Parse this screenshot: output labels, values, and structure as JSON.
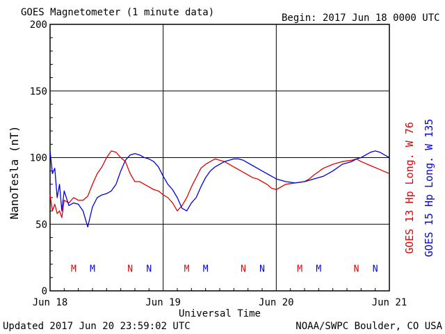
{
  "title": "GOES Magnetometer (1 minute data)",
  "begin_label": "Begin:  2017 Jun 18 0000 UTC",
  "updated_label": "Updated 2017 Jun 20 23:59:02 UTC",
  "credit_label": "NOAA/SWPC Boulder, CO USA",
  "colors": {
    "goes13": "#e00000",
    "goes15": "#0000e0",
    "axes": "#000000"
  },
  "chart_data": {
    "type": "line",
    "title": "GOES Magnetometer (1 minute data)",
    "xlabel": "Universal Time",
    "ylabel": "NanoTesla (nT)",
    "ylim": [
      0,
      200
    ],
    "yticks": [
      0,
      50,
      100,
      150,
      200
    ],
    "xlim_hours": [
      0,
      72
    ],
    "xtick_labels": [
      "Jun 18",
      "Jun 19",
      "Jun 20",
      "Jun 21"
    ],
    "grid": true,
    "legend_placement": "right-vertical",
    "series": [
      {
        "name": "GOES 13 Hp  Long. W 76",
        "color": "#e00000",
        "hours": [
          0,
          0.5,
          1,
          1.5,
          2,
          2.5,
          3,
          4,
          5,
          6,
          7,
          8,
          9,
          10,
          11,
          12,
          13,
          14,
          15,
          16,
          17,
          18,
          19,
          20,
          21,
          22,
          23,
          24,
          25,
          26,
          27,
          28,
          29,
          30,
          31,
          32,
          33,
          34,
          35,
          36,
          37,
          38,
          39,
          40,
          41,
          42,
          43,
          44,
          45,
          46,
          47,
          48,
          50,
          52,
          54,
          55,
          56,
          58,
          60,
          62,
          64,
          65,
          66,
          68,
          70,
          72
        ],
        "values": [
          72,
          60,
          65,
          58,
          60,
          55,
          68,
          66,
          70,
          68,
          68,
          71,
          80,
          88,
          93,
          100,
          105,
          104,
          100,
          97,
          88,
          82,
          82,
          80,
          78,
          76,
          75,
          72,
          70,
          66,
          60,
          64,
          70,
          78,
          85,
          92,
          95,
          97,
          99,
          98,
          97,
          95,
          93,
          91,
          89,
          87,
          85,
          84,
          82,
          80,
          77,
          76,
          80,
          81,
          82,
          84,
          87,
          92,
          95,
          97,
          98,
          99,
          97,
          94,
          91,
          88
        ]
      },
      {
        "name": "GOES 15 Hp  Long. W 135",
        "color": "#0000e0",
        "hours": [
          0,
          0.5,
          1,
          1.5,
          2,
          2.5,
          3,
          4,
          5,
          6,
          7,
          8,
          9,
          10,
          11,
          12,
          13,
          14,
          15,
          16,
          17,
          18,
          19,
          20,
          21,
          22,
          23,
          24,
          25,
          26,
          27,
          28,
          29,
          30,
          31,
          32,
          33,
          34,
          35,
          36,
          37,
          38,
          39,
          40,
          41,
          42,
          43,
          44,
          45,
          46,
          47,
          48,
          50,
          52,
          54,
          55,
          56,
          58,
          60,
          62,
          64,
          65,
          66,
          68,
          69,
          70,
          71,
          72
        ],
        "values": [
          105,
          88,
          92,
          70,
          80,
          60,
          75,
          64,
          66,
          65,
          60,
          48,
          63,
          70,
          72,
          73,
          75,
          80,
          90,
          98,
          102,
          103,
          102,
          100,
          99,
          97,
          93,
          86,
          80,
          76,
          70,
          62,
          60,
          66,
          70,
          78,
          85,
          90,
          93,
          95,
          97,
          98,
          99,
          99,
          98,
          96,
          94,
          92,
          90,
          88,
          86,
          84,
          82,
          81,
          82,
          83,
          84,
          86,
          90,
          95,
          97,
          99,
          100,
          104,
          105,
          104,
          102,
          100
        ]
      }
    ],
    "annotations": {
      "marker_y": 17,
      "markers": [
        {
          "label": "M",
          "hour": 5,
          "series": "goes13"
        },
        {
          "label": "M",
          "hour": 9,
          "series": "goes15"
        },
        {
          "label": "N",
          "hour": 17,
          "series": "goes13"
        },
        {
          "label": "N",
          "hour": 21,
          "series": "goes15"
        },
        {
          "label": "M",
          "hour": 29,
          "series": "goes13"
        },
        {
          "label": "M",
          "hour": 33,
          "series": "goes15"
        },
        {
          "label": "N",
          "hour": 41,
          "series": "goes13"
        },
        {
          "label": "N",
          "hour": 45,
          "series": "goes15"
        },
        {
          "label": "M",
          "hour": 53,
          "series": "goes13"
        },
        {
          "label": "M",
          "hour": 57,
          "series": "goes15"
        },
        {
          "label": "N",
          "hour": 65,
          "series": "goes13"
        },
        {
          "label": "N",
          "hour": 69,
          "series": "goes15"
        }
      ]
    }
  }
}
